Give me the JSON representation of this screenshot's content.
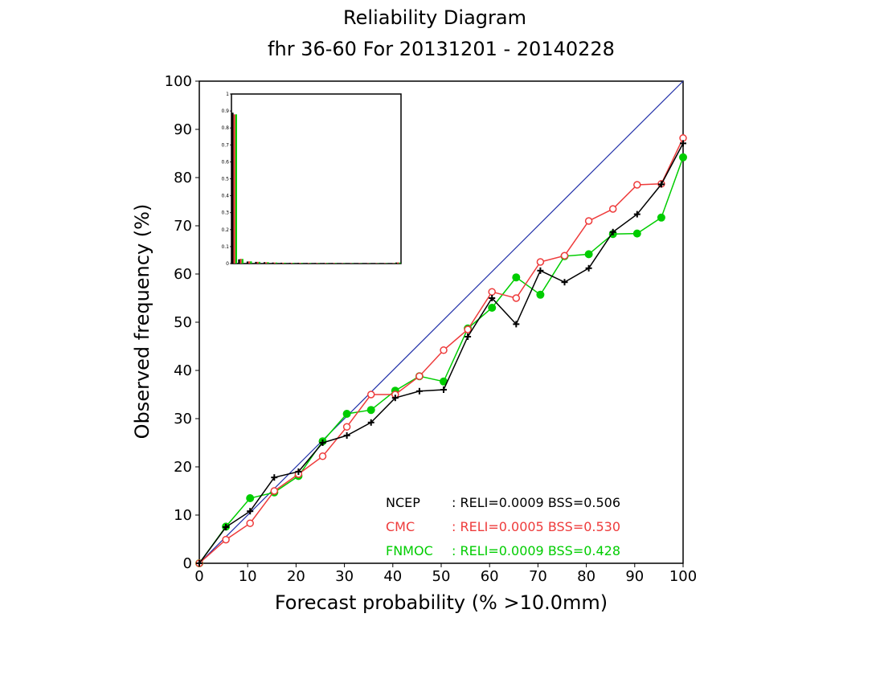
{
  "chart_data": {
    "type": "line",
    "title": "Reliability Diagram",
    "subtitle": "fhr 36-60 For 20131201 - 20140228",
    "xlabel": "Forecast probability (% >10.0mm)",
    "ylabel": "Observed frequency (%)",
    "xlim": [
      0,
      100
    ],
    "ylim": [
      0,
      100
    ],
    "x_ticks": [
      "0",
      "10",
      "20",
      "30",
      "40",
      "50",
      "60",
      "70",
      "80",
      "90",
      "100"
    ],
    "y_ticks": [
      "0",
      "10",
      "20",
      "30",
      "40",
      "50",
      "60",
      "70",
      "80",
      "90",
      "100"
    ],
    "perfect_reliability_line": {
      "x": [
        0,
        100
      ],
      "y": [
        0,
        100
      ],
      "color": "#1f2ea8"
    },
    "series": [
      {
        "name": "NCEP",
        "color": "#000000",
        "marker": "plus",
        "x": [
          0,
          5.5,
          10.5,
          15.5,
          20.5,
          25.5,
          30.5,
          35.5,
          40.5,
          45.5,
          50.5,
          55.5,
          60.5,
          65.5,
          70.5,
          75.5,
          80.5,
          85.5,
          90.5,
          95.5,
          100
        ],
        "y": [
          0,
          7.5,
          10.8,
          17.8,
          19,
          25,
          26.5,
          29.2,
          34.3,
          35.7,
          36,
          47,
          55,
          49.6,
          60.7,
          58.3,
          61.2,
          68.7,
          72.4,
          78.6,
          87.1
        ]
      },
      {
        "name": "CMC",
        "color": "#ee3b3b",
        "marker": "open-circle",
        "x": [
          0,
          5.5,
          10.5,
          15.5,
          20.5,
          25.5,
          30.5,
          35.5,
          40.5,
          45.5,
          50.5,
          55.5,
          60.5,
          65.5,
          70.5,
          75.5,
          80.5,
          85.5,
          90.5,
          95.5,
          100
        ],
        "y": [
          0,
          4.9,
          8.3,
          15,
          18.5,
          22.2,
          28.3,
          35,
          35,
          38.8,
          44.2,
          48.5,
          56.3,
          55,
          62.5,
          63.8,
          71,
          73.5,
          78.5,
          78.7,
          88.2
        ]
      },
      {
        "name": "FNMOC",
        "color": "#00cd00",
        "marker": "filled-circle",
        "x": [
          0,
          5.5,
          10.5,
          15.5,
          20.5,
          25.5,
          30.5,
          35.5,
          40.5,
          45.5,
          50.5,
          55.5,
          60.5,
          65.5,
          70.5,
          75.5,
          80.5,
          85.5,
          90.5,
          95.5,
          100
        ],
        "y": [
          0,
          7.6,
          13.5,
          14.7,
          18.1,
          25.3,
          31,
          31.8,
          35.8,
          38.8,
          37.7,
          48.7,
          53,
          59.3,
          55.7,
          63.7,
          64.1,
          68.3,
          68.4,
          71.7,
          84.2
        ]
      }
    ],
    "legend": {
      "placement": "bottom-right",
      "entries": [
        {
          "name": "NCEP",
          "stats": ": RELI=0.0009 BSS=0.506",
          "color": "#000000"
        },
        {
          "name": "CMC",
          "stats": ": RELI=0.0005 BSS=0.530",
          "color": "#ee3b3b"
        },
        {
          "name": "FNMOC",
          "stats": ": RELI=0.0009 BSS=0.428",
          "color": "#00cd00"
        }
      ]
    },
    "inset_histogram": {
      "type": "bar",
      "placement": "top-left",
      "ylim": [
        0,
        1
      ],
      "y_ticks": [
        "0",
        "0.1",
        "0.2",
        "0.3",
        "0.4",
        "0.5",
        "0.6",
        "0.7",
        "0.8",
        "0.9",
        "1"
      ],
      "bins": [
        0,
        5.5,
        10.5,
        15.5,
        20.5,
        25.5,
        30.5,
        35.5,
        40.5,
        45.5,
        50.5,
        55.5,
        60.5,
        65.5,
        70.5,
        75.5,
        80.5,
        85.5,
        90.5,
        95.5,
        100
      ],
      "series": [
        {
          "name": "NCEP",
          "color": "#000000",
          "values": [
            0.89,
            0.025,
            0.012,
            0.01,
            0.008,
            0.006,
            0.005,
            0.004,
            0.004,
            0.003,
            0.003,
            0.003,
            0.003,
            0.002,
            0.002,
            0.002,
            0.002,
            0.002,
            0.002,
            0.002,
            0.006
          ]
        },
        {
          "name": "CMC",
          "color": "#ee3b3b",
          "values": [
            0.88,
            0.028,
            0.013,
            0.01,
            0.008,
            0.006,
            0.005,
            0.004,
            0.004,
            0.003,
            0.003,
            0.003,
            0.003,
            0.002,
            0.002,
            0.002,
            0.002,
            0.002,
            0.002,
            0.002,
            0.007
          ]
        },
        {
          "name": "FNMOC",
          "color": "#00cd00",
          "values": [
            0.88,
            0.027,
            0.013,
            0.01,
            0.008,
            0.006,
            0.005,
            0.004,
            0.004,
            0.003,
            0.003,
            0.003,
            0.003,
            0.002,
            0.002,
            0.002,
            0.002,
            0.002,
            0.002,
            0.002,
            0.006
          ]
        }
      ]
    }
  }
}
